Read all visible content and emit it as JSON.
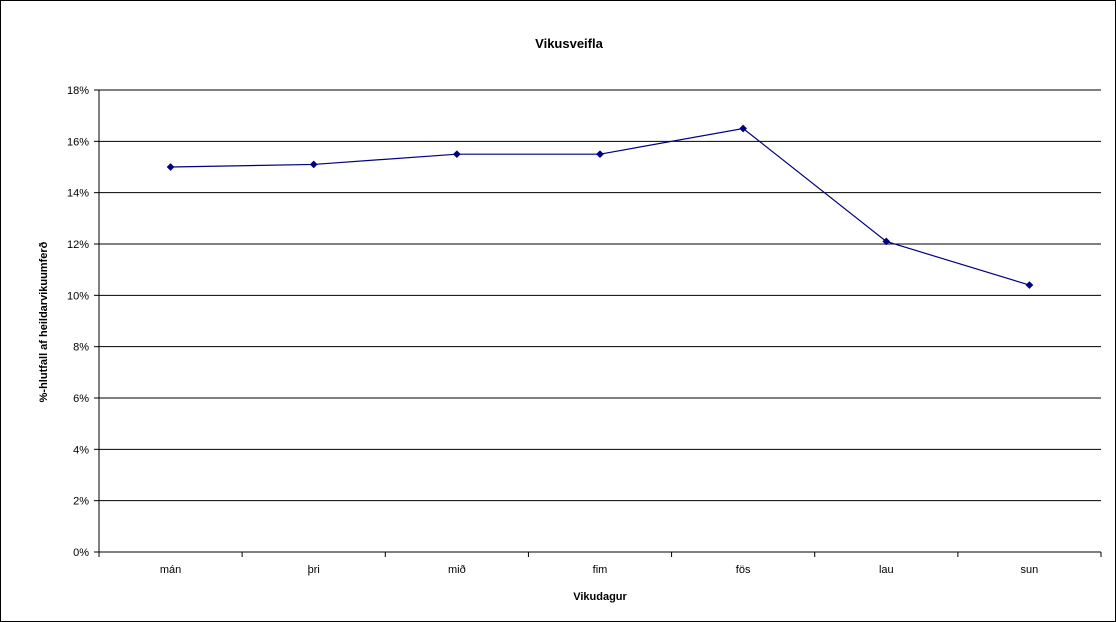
{
  "chart_data": {
    "type": "line",
    "title": "Vikusveifla",
    "xlabel": "Vikudagur",
    "ylabel": "%-hlutfall af heildarvikuumferð",
    "categories": [
      "mán",
      "þri",
      "mið",
      "fim",
      "fös",
      "lau",
      "sun"
    ],
    "series": [
      {
        "values": [
          15.0,
          15.1,
          15.5,
          15.5,
          16.5,
          12.1,
          10.4
        ],
        "color": "#000080"
      }
    ],
    "ylim": [
      0,
      18
    ],
    "ytick_step": 2,
    "ytick_labels": [
      "0%",
      "2%",
      "4%",
      "6%",
      "8%",
      "10%",
      "12%",
      "14%",
      "16%",
      "18%"
    ],
    "grid": true,
    "legend": "none"
  }
}
